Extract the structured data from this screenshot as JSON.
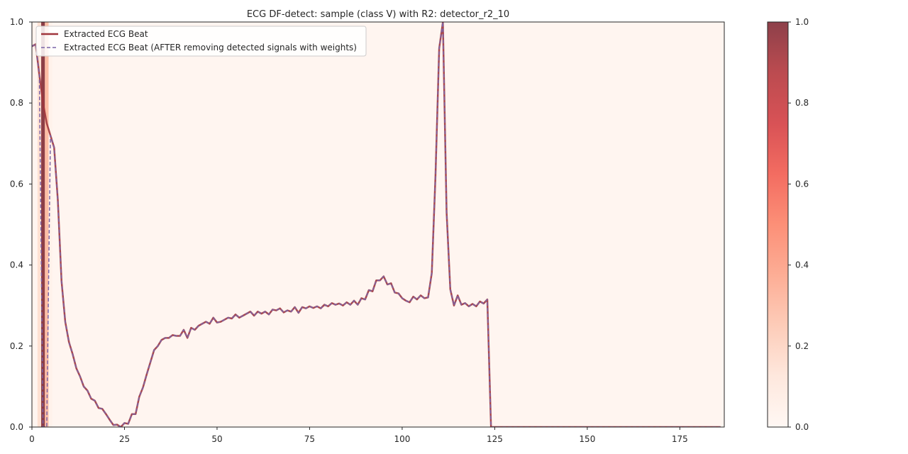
{
  "chart_data": {
    "type": "line",
    "title": "ECG DF-detect: sample (class V) with R2: detector_r2_10",
    "xlabel": "",
    "ylabel": "",
    "xlim": [
      0,
      187
    ],
    "ylim": [
      0,
      1
    ],
    "x_ticks": [
      0,
      25,
      50,
      75,
      100,
      125,
      150,
      175
    ],
    "y_ticks": [
      0.0,
      0.2,
      0.4,
      0.6,
      0.8,
      1.0
    ],
    "grid": false,
    "legend_position": "upper-left",
    "series": [
      {
        "name": "Extracted ECG Beat",
        "style": "solid",
        "color": "#a0353c",
        "x": [
          0,
          1,
          2,
          3,
          4,
          5,
          6,
          7,
          8,
          9,
          10,
          11,
          12,
          13,
          14,
          15,
          16,
          17,
          18,
          19,
          20,
          21,
          22,
          23,
          24,
          25,
          26,
          27,
          28,
          29,
          30,
          31,
          32,
          33,
          34,
          35,
          36,
          37,
          38,
          39,
          40,
          41,
          42,
          43,
          44,
          45,
          46,
          47,
          48,
          49,
          50,
          51,
          52,
          53,
          54,
          55,
          56,
          57,
          58,
          59,
          60,
          61,
          62,
          63,
          64,
          65,
          66,
          67,
          68,
          69,
          70,
          71,
          72,
          73,
          74,
          75,
          76,
          77,
          78,
          79,
          80,
          81,
          82,
          83,
          84,
          85,
          86,
          87,
          88,
          89,
          90,
          91,
          92,
          93,
          94,
          95,
          96,
          97,
          98,
          99,
          100,
          101,
          102,
          103,
          104,
          105,
          106,
          107,
          108,
          109,
          110,
          111,
          112,
          113,
          114,
          115,
          116,
          117,
          118,
          119,
          120,
          121,
          122,
          123,
          124,
          125,
          126,
          127,
          128,
          129,
          130,
          131,
          132,
          133,
          134,
          135,
          136,
          137,
          138,
          139,
          140,
          141,
          142,
          143,
          144,
          145,
          146,
          147,
          148,
          149,
          150,
          151,
          152,
          153,
          154,
          155,
          156,
          157,
          158,
          159,
          160,
          161,
          162,
          163,
          164,
          165,
          166,
          167,
          168,
          169,
          170,
          171,
          172,
          173,
          174,
          175,
          176,
          177,
          178,
          179,
          180,
          181,
          182,
          183,
          184,
          185,
          186
        ],
        "values": [
          0.94,
          0.945,
          0.87,
          0.8,
          0.75,
          0.72,
          0.69,
          0.56,
          0.36,
          0.26,
          0.21,
          0.18,
          0.145,
          0.125,
          0.1,
          0.09,
          0.07,
          0.065,
          0.047,
          0.045,
          0.032,
          0.018,
          0.005,
          0.006,
          0.0,
          0.01,
          0.008,
          0.032,
          0.032,
          0.075,
          0.098,
          0.13,
          0.16,
          0.19,
          0.2,
          0.215,
          0.22,
          0.22,
          0.227,
          0.225,
          0.225,
          0.24,
          0.22,
          0.245,
          0.24,
          0.25,
          0.255,
          0.26,
          0.255,
          0.27,
          0.258,
          0.26,
          0.265,
          0.27,
          0.268,
          0.278,
          0.27,
          0.275,
          0.28,
          0.285,
          0.275,
          0.285,
          0.28,
          0.285,
          0.278,
          0.29,
          0.288,
          0.293,
          0.283,
          0.288,
          0.285,
          0.296,
          0.282,
          0.296,
          0.293,
          0.298,
          0.294,
          0.298,
          0.293,
          0.302,
          0.298,
          0.306,
          0.302,
          0.305,
          0.3,
          0.308,
          0.302,
          0.312,
          0.302,
          0.318,
          0.315,
          0.338,
          0.335,
          0.362,
          0.362,
          0.372,
          0.352,
          0.355,
          0.332,
          0.33,
          0.318,
          0.312,
          0.308,
          0.322,
          0.315,
          0.325,
          0.318,
          0.32,
          0.38,
          0.62,
          0.935,
          1.0,
          0.53,
          0.34,
          0.3,
          0.325,
          0.302,
          0.306,
          0.298,
          0.304,
          0.298,
          0.31,
          0.305,
          0.315,
          0.0,
          0.0,
          0.0,
          0.0,
          0.0,
          0.0,
          0.0,
          0.0,
          0.0,
          0.0,
          0.0,
          0.0,
          0.0,
          0.0,
          0.0,
          0.0,
          0.0,
          0.0,
          0.0,
          0.0,
          0.0,
          0.0,
          0.0,
          0.0,
          0.0,
          0.0,
          0.0,
          0.0,
          0.0,
          0.0,
          0.0,
          0.0,
          0.0,
          0.0,
          0.0,
          0.0,
          0.0,
          0.0,
          0.0,
          0.0,
          0.0,
          0.0,
          0.0,
          0.0,
          0.0,
          0.0,
          0.0,
          0.0,
          0.0,
          0.0,
          0.0,
          0.0,
          0.0,
          0.0,
          0.0,
          0.0,
          0.0,
          0.0,
          0.0,
          0.0,
          0.0,
          0.0,
          0.0
        ]
      },
      {
        "name": "Extracted ECG Beat (AFTER removing detected signals with weights)",
        "style": "dashed",
        "color": "#7b64a8",
        "x": [
          0,
          1,
          2,
          3,
          4,
          5,
          6,
          7,
          8,
          9,
          10,
          11,
          12,
          13,
          14,
          15,
          16,
          17,
          18,
          19,
          20,
          21,
          22,
          23,
          24,
          25,
          26,
          27,
          28,
          29,
          30,
          31,
          32,
          33,
          34,
          35,
          36,
          37,
          38,
          39,
          40,
          41,
          42,
          43,
          44,
          45,
          46,
          47,
          48,
          49,
          50,
          51,
          52,
          53,
          54,
          55,
          56,
          57,
          58,
          59,
          60,
          61,
          62,
          63,
          64,
          65,
          66,
          67,
          68,
          69,
          70,
          71,
          72,
          73,
          74,
          75,
          76,
          77,
          78,
          79,
          80,
          81,
          82,
          83,
          84,
          85,
          86,
          87,
          88,
          89,
          90,
          91,
          92,
          93,
          94,
          95,
          96,
          97,
          98,
          99,
          100,
          101,
          102,
          103,
          104,
          105,
          106,
          107,
          108,
          109,
          110,
          111,
          112,
          113,
          114,
          115,
          116,
          117,
          118,
          119,
          120,
          121,
          122,
          123,
          124,
          125,
          126,
          127,
          128,
          129,
          130,
          131,
          132,
          133,
          134,
          135,
          136,
          137,
          138,
          139,
          140,
          141,
          142,
          143,
          144,
          145,
          146,
          147,
          148,
          149,
          150,
          151,
          152,
          153,
          154,
          155,
          156,
          157,
          158,
          159,
          160,
          161,
          162,
          163,
          164,
          165,
          166,
          167,
          168,
          169,
          170,
          171,
          172,
          173,
          174,
          175,
          176,
          177,
          178,
          179,
          180,
          181,
          182,
          183,
          184,
          185,
          186
        ],
        "values": [
          0.94,
          0.945,
          0.87,
          0.0,
          0.0,
          0.72,
          0.69,
          0.56,
          0.36,
          0.26,
          0.21,
          0.18,
          0.145,
          0.125,
          0.1,
          0.09,
          0.07,
          0.065,
          0.047,
          0.045,
          0.032,
          0.018,
          0.005,
          0.006,
          0.0,
          0.01,
          0.008,
          0.032,
          0.032,
          0.075,
          0.098,
          0.13,
          0.16,
          0.19,
          0.2,
          0.215,
          0.22,
          0.22,
          0.227,
          0.225,
          0.225,
          0.24,
          0.22,
          0.245,
          0.24,
          0.25,
          0.255,
          0.26,
          0.255,
          0.27,
          0.258,
          0.26,
          0.265,
          0.27,
          0.268,
          0.278,
          0.27,
          0.275,
          0.28,
          0.285,
          0.275,
          0.285,
          0.28,
          0.285,
          0.278,
          0.29,
          0.288,
          0.293,
          0.283,
          0.288,
          0.285,
          0.296,
          0.282,
          0.296,
          0.293,
          0.298,
          0.294,
          0.298,
          0.293,
          0.302,
          0.298,
          0.306,
          0.302,
          0.305,
          0.3,
          0.308,
          0.302,
          0.312,
          0.302,
          0.318,
          0.315,
          0.338,
          0.335,
          0.362,
          0.362,
          0.372,
          0.352,
          0.355,
          0.332,
          0.33,
          0.318,
          0.312,
          0.308,
          0.322,
          0.315,
          0.325,
          0.318,
          0.32,
          0.38,
          0.62,
          0.935,
          1.0,
          0.53,
          0.34,
          0.3,
          0.325,
          0.302,
          0.306,
          0.298,
          0.304,
          0.298,
          0.31,
          0.305,
          0.315,
          0.0,
          0.0,
          0.0,
          0.0,
          0.0,
          0.0,
          0.0,
          0.0,
          0.0,
          0.0,
          0.0,
          0.0,
          0.0,
          0.0,
          0.0,
          0.0,
          0.0,
          0.0,
          0.0,
          0.0,
          0.0,
          0.0,
          0.0,
          0.0,
          0.0,
          0.0,
          0.0,
          0.0,
          0.0,
          0.0,
          0.0,
          0.0,
          0.0,
          0.0,
          0.0,
          0.0,
          0.0,
          0.0,
          0.0,
          0.0,
          0.0,
          0.0,
          0.0,
          0.0,
          0.0,
          0.0,
          0.0,
          0.0,
          0.0,
          0.0,
          0.0,
          0.0,
          0.0,
          0.0,
          0.0,
          0.0,
          0.0,
          0.0,
          0.0,
          0.0,
          0.0,
          0.0,
          0.0
        ]
      }
    ],
    "background_weights": {
      "x": [
        0,
        2,
        3,
        4,
        5
      ],
      "weights": [
        0.03,
        0.15,
        1.0,
        0.3,
        0.03
      ]
    },
    "colorbar": {
      "colormap": "Reds",
      "range": [
        0,
        1
      ],
      "ticks": [
        0.0,
        0.2,
        0.4,
        0.6,
        0.8,
        1.0
      ]
    }
  }
}
